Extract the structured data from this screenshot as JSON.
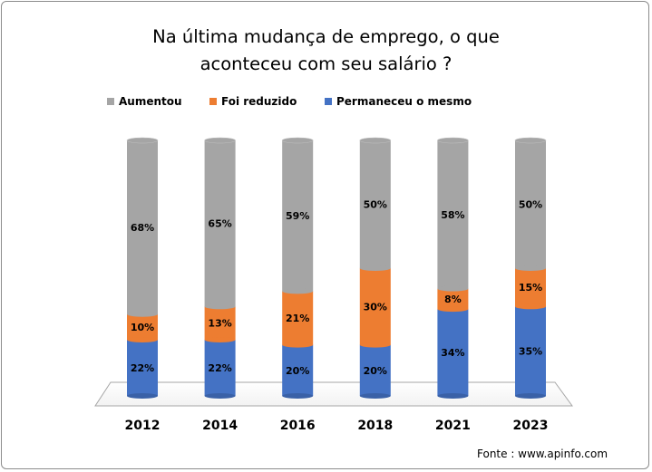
{
  "chart_data": {
    "type": "bar",
    "stacked": true,
    "title_lines": [
      "Na última mudança de emprego, o que",
      "aconteceu com seu salário ?"
    ],
    "categories": [
      "2012",
      "2014",
      "2016",
      "2018",
      "2021",
      "2023"
    ],
    "series": [
      {
        "name": "Permaneceu o mesmo",
        "color": "#4472c4",
        "values": [
          22,
          22,
          20,
          20,
          34,
          35
        ],
        "labels": [
          "22%",
          "22%",
          "20%",
          "20%",
          "34%",
          "35%"
        ]
      },
      {
        "name": "Foi reduzido",
        "color": "#ed7d31",
        "values": [
          10,
          13,
          21,
          30,
          8,
          15
        ],
        "labels": [
          "10%",
          "13%",
          "21%",
          "30%",
          "8%",
          "15%"
        ]
      },
      {
        "name": "Aumentou",
        "color": "#a5a5a5",
        "values": [
          68,
          65,
          59,
          50,
          58,
          50
        ],
        "labels": [
          "68%",
          "65%",
          "59%",
          "50%",
          "58%",
          "50%"
        ]
      }
    ],
    "legend_order": [
      "Aumentou",
      "Foi reduzido",
      "Permaneceu o mesmo"
    ],
    "ylim": [
      0,
      100
    ],
    "legend_position": "top",
    "grid": false
  },
  "source_note": "Fonte : www.apinfo.com"
}
